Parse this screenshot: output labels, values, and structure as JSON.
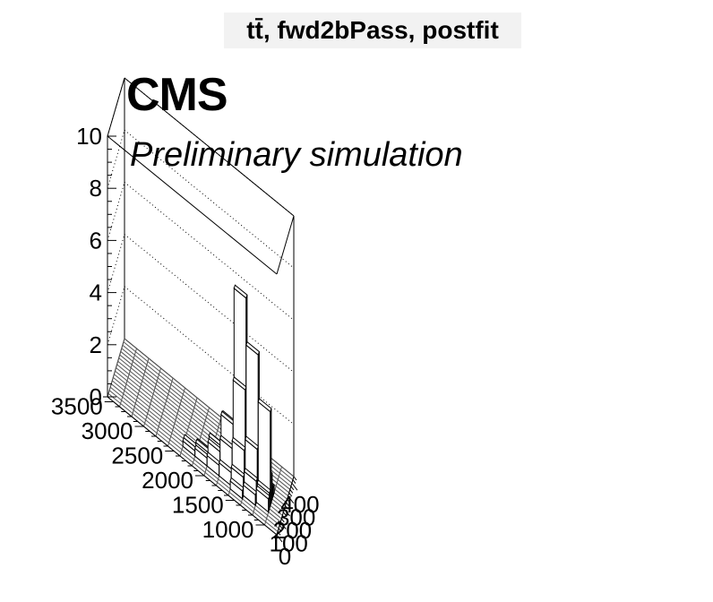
{
  "title": "tt̄, fwd2bPass, postfit",
  "cms_label": "CMS",
  "subtitle": "Preliminary simulation",
  "chart_data": {
    "type": "lego",
    "title": "tt̄, fwd2bPass, postfit",
    "xlabel": "",
    "ylabel": "",
    "zlabel": "",
    "x_ticks": [
      "0",
      "100",
      "200",
      "300",
      "400"
    ],
    "y_ticks": [
      "1000",
      "1500",
      "2000",
      "2500",
      "3000",
      "3500"
    ],
    "z_ticks": [
      "0",
      "2",
      "4",
      "6",
      "8",
      "10"
    ],
    "xlim": [
      0,
      450
    ],
    "ylim": [
      800,
      3600
    ],
    "zlim": [
      0,
      10
    ],
    "x_bins": 18,
    "y_bins": 14,
    "grid": true,
    "bins": [
      {
        "x": 112.5,
        "y": 1100,
        "z": 0.5
      },
      {
        "x": 137.5,
        "y": 1100,
        "z": 0.6
      },
      {
        "x": 162.5,
        "y": 1100,
        "z": 3.6
      },
      {
        "x": 187.5,
        "y": 1100,
        "z": 1.0
      },
      {
        "x": 212.5,
        "y": 1100,
        "z": 0.4
      },
      {
        "x": 237.5,
        "y": 1100,
        "z": 0.3
      },
      {
        "x": 87.5,
        "y": 1300,
        "z": 0.4
      },
      {
        "x": 112.5,
        "y": 1300,
        "z": 0.8
      },
      {
        "x": 137.5,
        "y": 1300,
        "z": 1.9
      },
      {
        "x": 162.5,
        "y": 1300,
        "z": 5.4
      },
      {
        "x": 187.5,
        "y": 1300,
        "z": 2.6
      },
      {
        "x": 212.5,
        "y": 1300,
        "z": 0.5
      },
      {
        "x": 62.5,
        "y": 1500,
        "z": 0.3
      },
      {
        "x": 87.5,
        "y": 1500,
        "z": 0.7
      },
      {
        "x": 112.5,
        "y": 1500,
        "z": 1.6
      },
      {
        "x": 137.5,
        "y": 1500,
        "z": 3.8
      },
      {
        "x": 162.5,
        "y": 1500,
        "z": 7.2
      },
      {
        "x": 187.5,
        "y": 1500,
        "z": 1.2
      },
      {
        "x": 212.5,
        "y": 1500,
        "z": 0.4
      },
      {
        "x": 87.5,
        "y": 1700,
        "z": 0.5
      },
      {
        "x": 112.5,
        "y": 1700,
        "z": 1.3
      },
      {
        "x": 137.5,
        "y": 1700,
        "z": 2.1
      },
      {
        "x": 162.5,
        "y": 1700,
        "z": 2.0
      },
      {
        "x": 187.5,
        "y": 1700,
        "z": 0.6
      },
      {
        "x": 87.5,
        "y": 1900,
        "z": 0.4
      },
      {
        "x": 112.5,
        "y": 1900,
        "z": 0.8
      },
      {
        "x": 137.5,
        "y": 1900,
        "z": 0.9
      },
      {
        "x": 162.5,
        "y": 1900,
        "z": 0.6
      },
      {
        "x": 87.5,
        "y": 2100,
        "z": 0.3
      },
      {
        "x": 112.5,
        "y": 2100,
        "z": 0.4
      },
      {
        "x": 137.5,
        "y": 2100,
        "z": 0.3
      },
      {
        "x": 87.5,
        "y": 2300,
        "z": 0.2
      },
      {
        "x": 112.5,
        "y": 2300,
        "z": 0.2
      }
    ]
  }
}
